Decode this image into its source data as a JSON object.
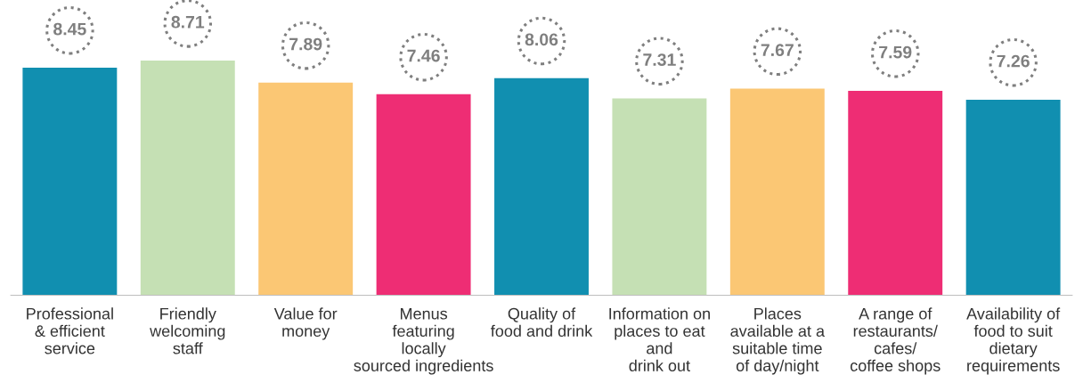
{
  "chart_data": {
    "type": "bar",
    "categories": [
      "Professional\n& efficient\nservice",
      "Friendly\nwelcoming\nstaff",
      "Value for\nmoney",
      "Menus\nfeaturing\nlocally\nsourced ingredients",
      "Quality of\nfood and drink",
      "Information on\nplaces to eat\nand\ndrink out",
      "Places\navailable at a\nsuitable time\nof day/night",
      "A range of\nrestaurants/\ncafes/\ncoffee shops",
      "Availability of\nfood to suit\ndietary\nrequirements"
    ],
    "values": [
      8.45,
      8.71,
      7.89,
      7.46,
      8.06,
      7.31,
      7.67,
      7.59,
      7.26
    ],
    "colors": [
      "#118fb0",
      "#c5e0b4",
      "#fbc774",
      "#ee2d74",
      "#118fb0",
      "#c5e0b4",
      "#fbc774",
      "#ee2d74",
      "#118fb0"
    ],
    "tick_labels": "x",
    "data_labels": true
  }
}
